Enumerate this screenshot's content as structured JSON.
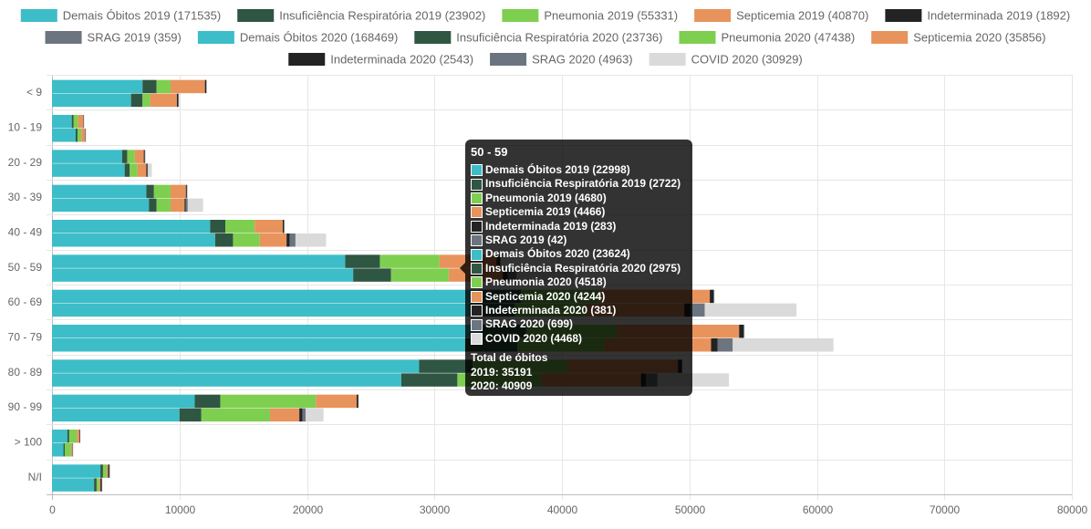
{
  "chart_data": {
    "type": "bar",
    "orientation": "horizontal",
    "stacked": true,
    "stack_groups": [
      "2019",
      "2020"
    ],
    "categories": [
      "< 9",
      "10 - 19",
      "20 - 29",
      "30 - 39",
      "40 - 49",
      "50 - 59",
      "60 - 69",
      "70 - 79",
      "80 - 89",
      "90 - 99",
      "> 100",
      "N/I"
    ],
    "xlim": [
      0,
      80000
    ],
    "x_ticks": [
      "0",
      "10000",
      "20000",
      "30000",
      "40000",
      "50000",
      "60000",
      "70000",
      "80000"
    ],
    "grid": true,
    "legend_position": "top",
    "series": [
      {
        "name": "Demais Óbitos 2019 (171535)",
        "stack": "2019",
        "color": "#3dbdc8",
        "values": [
          7100,
          1550,
          5500,
          7400,
          12400,
          22998,
          33500,
          33600,
          28800,
          11200,
          1200,
          3800
        ]
      },
      {
        "name": "Insuficiência Respiratória 2019 (23902)",
        "stack": "2019",
        "color": "#2f5642",
        "values": [
          1100,
          150,
          400,
          600,
          1200,
          2722,
          3300,
          3600,
          4200,
          2000,
          150,
          200
        ]
      },
      {
        "name": "Pneumonia 2019 (55331)",
        "stack": "2019",
        "color": "#7ecf50",
        "values": [
          1100,
          350,
          600,
          1300,
          2300,
          4680,
          6200,
          7100,
          7400,
          7500,
          600,
          300
        ]
      },
      {
        "name": "Septicemia 2019 (40870)",
        "stack": "2019",
        "color": "#e8935c",
        "values": [
          2700,
          400,
          700,
          1200,
          2200,
          4466,
          8600,
          9600,
          8700,
          3200,
          200,
          100
        ]
      },
      {
        "name": "Indeterminada 2019 (1892)",
        "stack": "2019",
        "color": "#232323",
        "values": [
          100,
          30,
          80,
          80,
          100,
          283,
          300,
          350,
          300,
          120,
          30,
          100
        ]
      },
      {
        "name": "SRAG 2019 (359)",
        "stack": "2019",
        "color": "#6c757f",
        "values": [
          20,
          10,
          20,
          20,
          30,
          42,
          60,
          70,
          50,
          30,
          5,
          10
        ]
      },
      {
        "name": "Demais Óbitos 2020 (168469)",
        "stack": "2020",
        "color": "#3dbdc8",
        "values": [
          6200,
          1850,
          5700,
          7600,
          12800,
          23624,
          32800,
          32400,
          27400,
          10000,
          900,
          3300
        ]
      },
      {
        "name": "Insuficiência Respiratória 2020 (23736)",
        "stack": "2020",
        "color": "#2f5642",
        "values": [
          900,
          150,
          400,
          600,
          1400,
          2975,
          3500,
          4100,
          4400,
          1700,
          100,
          200
        ]
      },
      {
        "name": "Pneumonia 2020 (47438)",
        "stack": "2020",
        "color": "#7ecf50",
        "values": [
          600,
          300,
          600,
          1100,
          2100,
          4518,
          5500,
          6800,
          6600,
          5400,
          500,
          200
        ]
      },
      {
        "name": "Septicemia 2020 (35856)",
        "stack": "2020",
        "color": "#e8935c",
        "values": [
          2100,
          300,
          700,
          1100,
          2100,
          4244,
          7800,
          8400,
          7800,
          2300,
          100,
          100
        ]
      },
      {
        "name": "Indeterminada 2020 (2543)",
        "stack": "2020",
        "color": "#232323",
        "values": [
          100,
          30,
          80,
          100,
          250,
          381,
          500,
          500,
          400,
          250,
          20,
          100
        ]
      },
      {
        "name": "SRAG 2020 (4963)",
        "stack": "2020",
        "color": "#6c757f",
        "values": [
          50,
          20,
          50,
          150,
          450,
          699,
          1100,
          1200,
          900,
          250,
          20,
          20
        ]
      },
      {
        "name": "COVID 2020 (30929)",
        "stack": "2020",
        "color": "#dadada",
        "values": [
          50,
          10,
          300,
          1200,
          2400,
          4468,
          7200,
          7900,
          5600,
          1400,
          20,
          10
        ]
      }
    ]
  },
  "tooltip": {
    "title": "50 - 59",
    "rows": [
      {
        "label": "Demais Óbitos 2019 (22998)",
        "color": "#3dbdc8"
      },
      {
        "label": "Insuficiência Respiratória 2019 (2722)",
        "color": "#2f5642"
      },
      {
        "label": "Pneumonia 2019 (4680)",
        "color": "#7ecf50"
      },
      {
        "label": "Septicemia 2019 (4466)",
        "color": "#e8935c"
      },
      {
        "label": "Indeterminada 2019 (283)",
        "color": "#232323"
      },
      {
        "label": "SRAG 2019 (42)",
        "color": "#6c757f"
      },
      {
        "label": "Demais Óbitos 2020 (23624)",
        "color": "#3dbdc8"
      },
      {
        "label": "Insuficiência Respiratória 2020 (2975)",
        "color": "#2f5642"
      },
      {
        "label": "Pneumonia 2020 (4518)",
        "color": "#7ecf50"
      },
      {
        "label": "Septicemia 2020 (4244)",
        "color": "#e8935c"
      },
      {
        "label": "Indeterminada 2020 (381)",
        "color": "#232323"
      },
      {
        "label": "SRAG 2020 (699)",
        "color": "#6c757f"
      },
      {
        "label": "COVID 2020 (4468)",
        "color": "#dadada"
      }
    ],
    "footer_title": "Total de óbitos",
    "footer_2019": "2019: 35191",
    "footer_2020": "2020: 40909"
  }
}
